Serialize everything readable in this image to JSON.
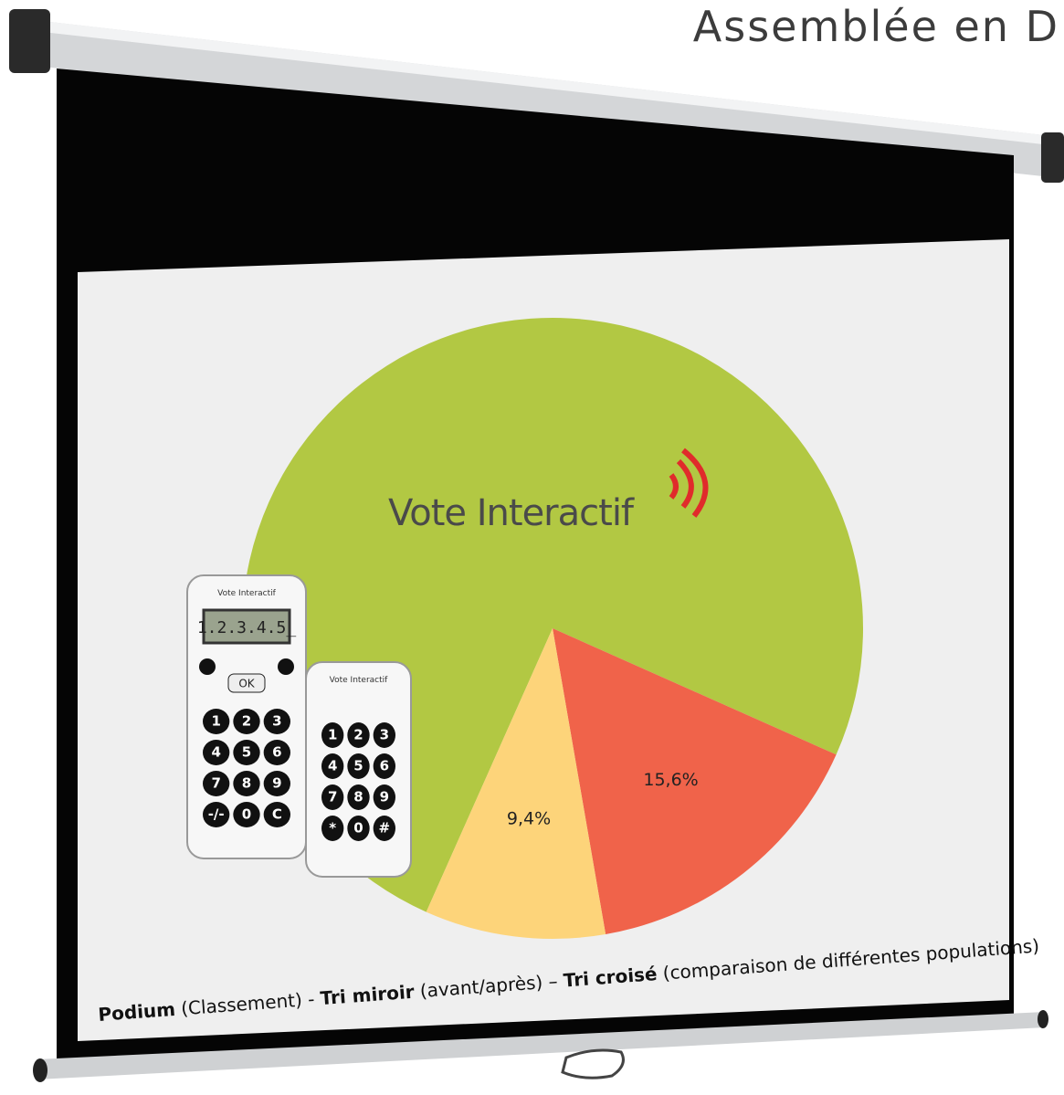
{
  "header": {
    "title": "Assemblée en D"
  },
  "logo": "Vote Interactif",
  "chart_data": {
    "type": "pie",
    "values": [
      75,
      15.6,
      9.4
    ],
    "value_labels": [
      null,
      "15,6%",
      "9,4%"
    ],
    "colors": [
      "#b2c843",
      "#f0634a",
      "#fdd47a"
    ]
  },
  "caption": [
    "Podium",
    " (Classement) - ",
    "Tri miroir",
    " (avant/après) – ",
    "Tri croisé",
    " (comparaison de différentes populations)"
  ],
  "devices": [
    {
      "brand": "Vote Interactif",
      "display": "1.2.3.4.5_",
      "ok": "OK",
      "keys": [
        "1",
        "2",
        "3",
        "4",
        "5",
        "6",
        "7",
        "8",
        "9",
        "-/-",
        "0",
        "C"
      ]
    },
    {
      "brand": "Vote Interactif",
      "keys": [
        "1",
        "2",
        "3",
        "4",
        "5",
        "6",
        "7",
        "8",
        "9",
        "*",
        "0",
        "#"
      ]
    }
  ]
}
